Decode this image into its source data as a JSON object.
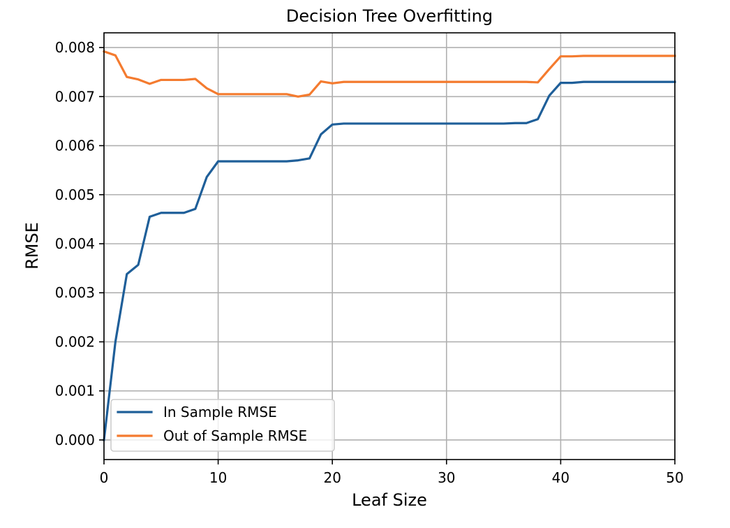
{
  "chart_data": {
    "type": "line",
    "title": "Decision Tree Overfitting",
    "xlabel": "Leaf Size",
    "ylabel": "RMSE",
    "xlim": [
      0,
      50
    ],
    "ylim": [
      -0.0004,
      0.0083
    ],
    "x_ticks": [
      0,
      10,
      20,
      30,
      40,
      50
    ],
    "x_tick_labels": [
      "0",
      "10",
      "20",
      "30",
      "40",
      "50"
    ],
    "y_ticks": [
      0,
      0.001,
      0.002,
      0.003,
      0.004,
      0.005,
      0.006,
      0.007,
      0.008
    ],
    "y_tick_labels": [
      "0.000",
      "0.001",
      "0.002",
      "0.003",
      "0.004",
      "0.005",
      "0.006",
      "0.007",
      "0.008"
    ],
    "grid": true,
    "legend_position": "lower-left",
    "x": [
      0,
      1,
      2,
      3,
      4,
      5,
      6,
      7,
      8,
      9,
      10,
      11,
      12,
      13,
      14,
      15,
      16,
      17,
      18,
      19,
      20,
      21,
      22,
      23,
      24,
      25,
      26,
      27,
      28,
      29,
      30,
      31,
      32,
      33,
      34,
      35,
      36,
      37,
      38,
      39,
      40,
      41,
      42,
      43,
      44,
      45,
      46,
      47,
      48,
      49,
      50
    ],
    "series": [
      {
        "name": "In Sample RMSE",
        "color": "#1f5f99",
        "values": [
          0.0,
          0.002,
          0.00338,
          0.00357,
          0.00455,
          0.00463,
          0.00463,
          0.00463,
          0.00471,
          0.00536,
          0.00568,
          0.00568,
          0.00568,
          0.00568,
          0.00568,
          0.00568,
          0.00568,
          0.0057,
          0.00574,
          0.00623,
          0.00643,
          0.00645,
          0.00645,
          0.00645,
          0.00645,
          0.00645,
          0.00645,
          0.00645,
          0.00645,
          0.00645,
          0.00645,
          0.00645,
          0.00645,
          0.00645,
          0.00645,
          0.00645,
          0.00646,
          0.00646,
          0.00654,
          0.00702,
          0.00728,
          0.00728,
          0.0073,
          0.0073,
          0.0073,
          0.0073,
          0.0073,
          0.0073,
          0.0073,
          0.0073,
          0.0073
        ]
      },
      {
        "name": "Out of Sample RMSE",
        "color": "#f47b2f",
        "values": [
          0.00792,
          0.00784,
          0.0074,
          0.00735,
          0.00726,
          0.00734,
          0.00734,
          0.00734,
          0.00736,
          0.00717,
          0.00705,
          0.00705,
          0.00705,
          0.00705,
          0.00705,
          0.00705,
          0.00705,
          0.007,
          0.00704,
          0.00731,
          0.00727,
          0.0073,
          0.0073,
          0.0073,
          0.0073,
          0.0073,
          0.0073,
          0.0073,
          0.0073,
          0.0073,
          0.0073,
          0.0073,
          0.0073,
          0.0073,
          0.0073,
          0.0073,
          0.0073,
          0.0073,
          0.00729,
          0.00756,
          0.00782,
          0.00782,
          0.00783,
          0.00783,
          0.00783,
          0.00783,
          0.00783,
          0.00783,
          0.00783,
          0.00783,
          0.00783
        ]
      }
    ]
  }
}
